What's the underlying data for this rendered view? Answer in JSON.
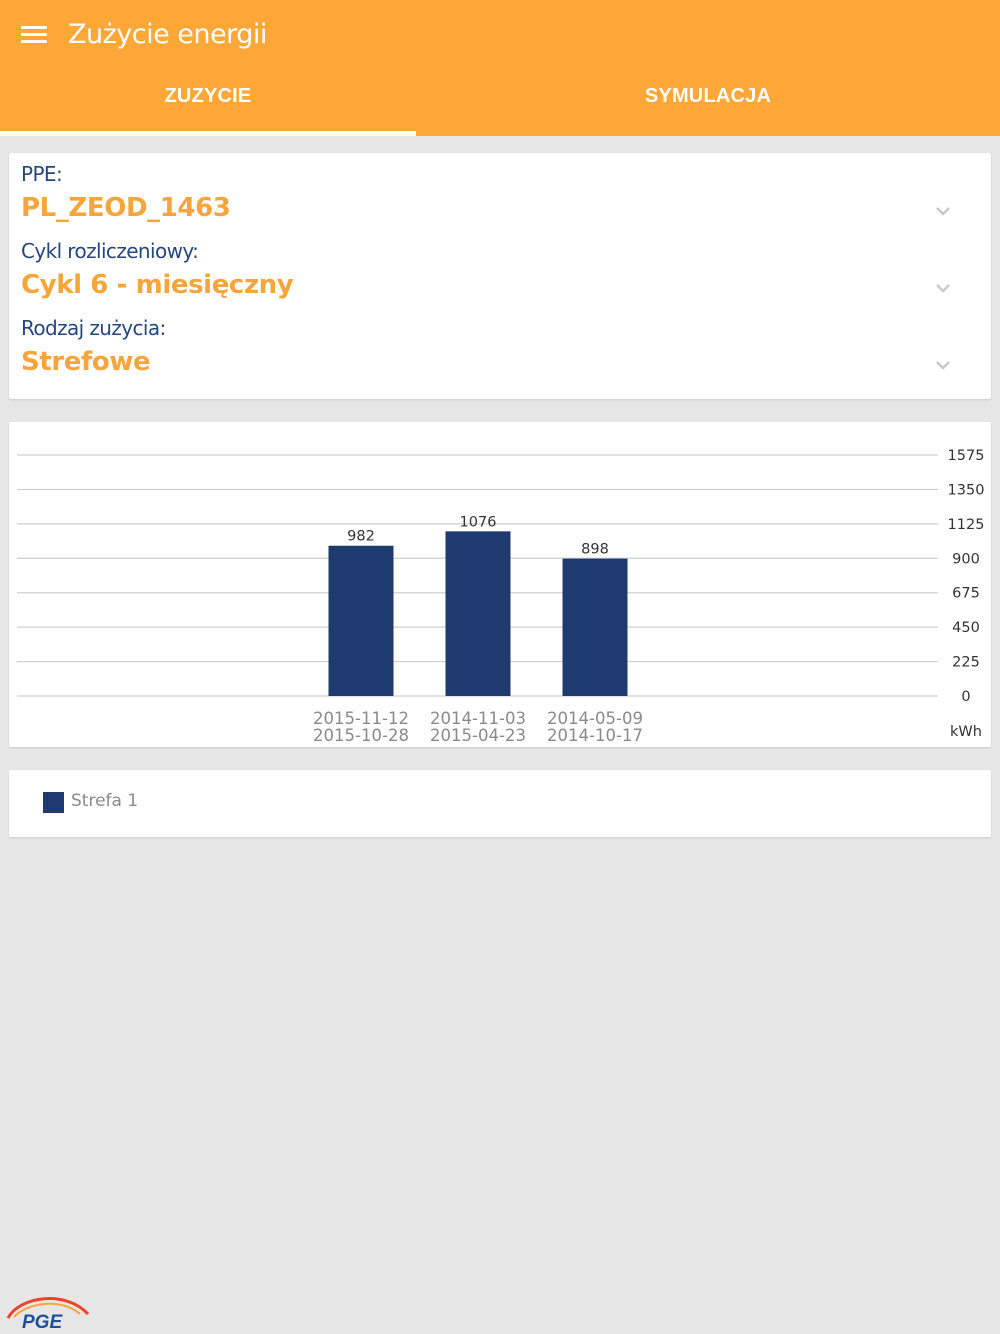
{
  "appbar": {
    "title": "Zużycie energii",
    "tabs": [
      {
        "label": "ZUZYCIE",
        "active": true
      },
      {
        "label": "SYMULACJA",
        "active": false
      }
    ],
    "color": "#fda737"
  },
  "selectors": [
    {
      "label": "PPE:",
      "value": "PL_ZEOD_1463"
    },
    {
      "label": "Cykl rozliczeniowy:",
      "value": "Cykl 6 - miesięczny"
    },
    {
      "label": "Rodzaj zużycia:",
      "value": "Strefowe"
    }
  ],
  "chart_data": {
    "type": "bar",
    "categories": [
      [
        "2015-11-12",
        "2015-10-28"
      ],
      [
        "2014-11-03",
        "2015-04-23"
      ],
      [
        "2014-05-09",
        "2014-10-17"
      ]
    ],
    "series": [
      {
        "name": "Strefa 1",
        "values": [
          982,
          1076,
          898
        ],
        "color": "#1e3a6e"
      }
    ],
    "y_ticks": [
      "1575",
      "1350",
      "1125",
      "900",
      "675",
      "450",
      "225",
      "0"
    ],
    "ylim": [
      0,
      1575
    ],
    "yunit": "kWh",
    "grid": true,
    "legend_position": "bottom"
  },
  "legend": {
    "label": "Strefa 1"
  },
  "logo": {
    "text": "PGE"
  }
}
